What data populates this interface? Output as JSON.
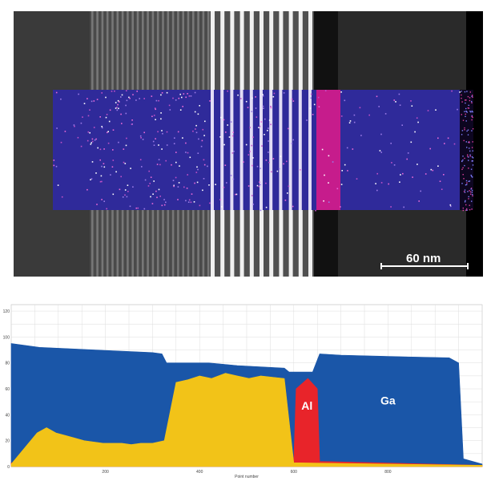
{
  "image": {
    "scale_bar_label": "60 nm"
  },
  "chart_data": {
    "type": "area",
    "xlabel": "Point number",
    "ylabel": "",
    "xlim": [
      0,
      1000
    ],
    "ylim": [
      0,
      125
    ],
    "x_ticks": [
      200,
      400,
      600,
      800
    ],
    "y_ticks": [
      0,
      20,
      40,
      60,
      80,
      100,
      120
    ],
    "grid": true,
    "series": [
      {
        "name": "Ga",
        "color": "#1a56a8",
        "points": [
          [
            0,
            95
          ],
          [
            60,
            92
          ],
          [
            120,
            91
          ],
          [
            180,
            90
          ],
          [
            240,
            89
          ],
          [
            300,
            88
          ],
          [
            320,
            87
          ],
          [
            330,
            80
          ],
          [
            420,
            80
          ],
          [
            480,
            78
          ],
          [
            580,
            76
          ],
          [
            590,
            73
          ],
          [
            640,
            73
          ],
          [
            655,
            87
          ],
          [
            700,
            86
          ],
          [
            800,
            85
          ],
          [
            930,
            84
          ],
          [
            950,
            80
          ],
          [
            960,
            6
          ],
          [
            1000,
            2
          ]
        ]
      },
      {
        "name": "Al",
        "color": "#e8242a",
        "points": [
          [
            0,
            3
          ],
          [
            580,
            3
          ],
          [
            600,
            4
          ],
          [
            605,
            60
          ],
          [
            630,
            68
          ],
          [
            650,
            60
          ],
          [
            655,
            4
          ],
          [
            1000,
            1
          ]
        ]
      },
      {
        "name": "",
        "color": "#f2c318",
        "points": [
          [
            0,
            2
          ],
          [
            55,
            26
          ],
          [
            75,
            30
          ],
          [
            95,
            26
          ],
          [
            115,
            24
          ],
          [
            135,
            22
          ],
          [
            155,
            20
          ],
          [
            175,
            19
          ],
          [
            195,
            18
          ],
          [
            215,
            18
          ],
          [
            235,
            18
          ],
          [
            255,
            17
          ],
          [
            275,
            18
          ],
          [
            300,
            18
          ],
          [
            325,
            20
          ],
          [
            350,
            65
          ],
          [
            375,
            67
          ],
          [
            400,
            70
          ],
          [
            425,
            68
          ],
          [
            455,
            72
          ],
          [
            480,
            70
          ],
          [
            505,
            68
          ],
          [
            530,
            70
          ],
          [
            555,
            69
          ],
          [
            580,
            68
          ],
          [
            600,
            3
          ],
          [
            1000,
            1
          ]
        ]
      }
    ],
    "annotations": [
      "Al",
      "Ga"
    ]
  }
}
